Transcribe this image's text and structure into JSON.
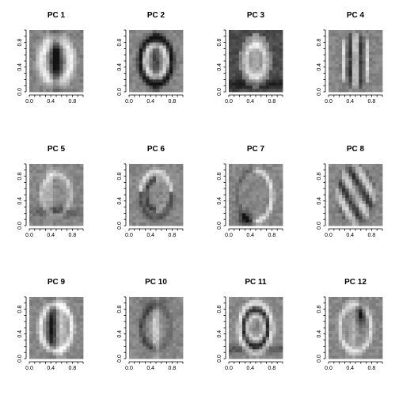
{
  "chart_data": [
    {
      "type": "heatmap",
      "title": "PC  1",
      "pattern": "pc1",
      "x_ticks": [
        "0.0",
        "0.4",
        "0.8"
      ],
      "y_ticks": [
        "0.0",
        "0.4",
        "0.8"
      ],
      "xlim": [
        0,
        1
      ],
      "ylim": [
        0,
        1
      ],
      "colormap": "grayscale"
    },
    {
      "type": "heatmap",
      "title": "PC  2",
      "pattern": "pc2",
      "x_ticks": [
        "0.0",
        "0.4",
        "0.8"
      ],
      "y_ticks": [
        "0.0",
        "0.4",
        "0.8"
      ],
      "xlim": [
        0,
        1
      ],
      "ylim": [
        0,
        1
      ],
      "colormap": "grayscale"
    },
    {
      "type": "heatmap",
      "title": "PC  3",
      "pattern": "pc3",
      "x_ticks": [
        "0.0",
        "0.4",
        "0.8"
      ],
      "y_ticks": [
        "0.0",
        "0.4",
        "0.8"
      ],
      "xlim": [
        0,
        1
      ],
      "ylim": [
        0,
        1
      ],
      "colormap": "grayscale"
    },
    {
      "type": "heatmap",
      "title": "PC  4",
      "pattern": "pc4",
      "x_ticks": [
        "0.0",
        "0.4",
        "0.8"
      ],
      "y_ticks": [
        "0.0",
        "0.4",
        "0.8"
      ],
      "xlim": [
        0,
        1
      ],
      "ylim": [
        0,
        1
      ],
      "colormap": "grayscale"
    },
    {
      "type": "heatmap",
      "title": "PC  5",
      "pattern": "pc5",
      "x_ticks": [
        "0.0",
        "0.4",
        "0.8"
      ],
      "y_ticks": [
        "0.0",
        "0.4",
        "0.8"
      ],
      "xlim": [
        0,
        1
      ],
      "ylim": [
        0,
        1
      ],
      "colormap": "grayscale"
    },
    {
      "type": "heatmap",
      "title": "PC  6",
      "pattern": "pc6",
      "x_ticks": [
        "0.0",
        "0.4",
        "0.8"
      ],
      "y_ticks": [
        "0.0",
        "0.4",
        "0.8"
      ],
      "xlim": [
        0,
        1
      ],
      "ylim": [
        0,
        1
      ],
      "colormap": "grayscale"
    },
    {
      "type": "heatmap",
      "title": "PC  7",
      "pattern": "pc7",
      "x_ticks": [
        "0.0",
        "0.4",
        "0.8"
      ],
      "y_ticks": [
        "0.0",
        "0.4",
        "0.8"
      ],
      "xlim": [
        0,
        1
      ],
      "ylim": [
        0,
        1
      ],
      "colormap": "grayscale"
    },
    {
      "type": "heatmap",
      "title": "PC  8",
      "pattern": "pc8",
      "x_ticks": [
        "0.0",
        "0.4",
        "0.8"
      ],
      "y_ticks": [
        "0.0",
        "0.4",
        "0.8"
      ],
      "xlim": [
        0,
        1
      ],
      "ylim": [
        0,
        1
      ],
      "colormap": "grayscale"
    },
    {
      "type": "heatmap",
      "title": "PC  9",
      "pattern": "pc9",
      "x_ticks": [
        "0.0",
        "0.4",
        "0.8"
      ],
      "y_ticks": [
        "0.0",
        "0.4",
        "0.8"
      ],
      "xlim": [
        0,
        1
      ],
      "ylim": [
        0,
        1
      ],
      "colormap": "grayscale"
    },
    {
      "type": "heatmap",
      "title": "PC  10",
      "pattern": "pc10",
      "x_ticks": [
        "0.0",
        "0.4",
        "0.8"
      ],
      "y_ticks": [
        "0.0",
        "0.4",
        "0.8"
      ],
      "xlim": [
        0,
        1
      ],
      "ylim": [
        0,
        1
      ],
      "colormap": "grayscale"
    },
    {
      "type": "heatmap",
      "title": "PC  11",
      "pattern": "pc11",
      "x_ticks": [
        "0.0",
        "0.4",
        "0.8"
      ],
      "y_ticks": [
        "0.0",
        "0.4",
        "0.8"
      ],
      "xlim": [
        0,
        1
      ],
      "ylim": [
        0,
        1
      ],
      "colormap": "grayscale"
    },
    {
      "type": "heatmap",
      "title": "PC  12",
      "pattern": "pc12",
      "x_ticks": [
        "0.0",
        "0.4",
        "0.8"
      ],
      "y_ticks": [
        "0.0",
        "0.4",
        "0.8"
      ],
      "xlim": [
        0,
        1
      ],
      "ylim": [
        0,
        1
      ],
      "colormap": "grayscale"
    }
  ],
  "colors": {
    "background": "#ffffff",
    "axis": "#000000",
    "neutral_gray": "#808080"
  }
}
